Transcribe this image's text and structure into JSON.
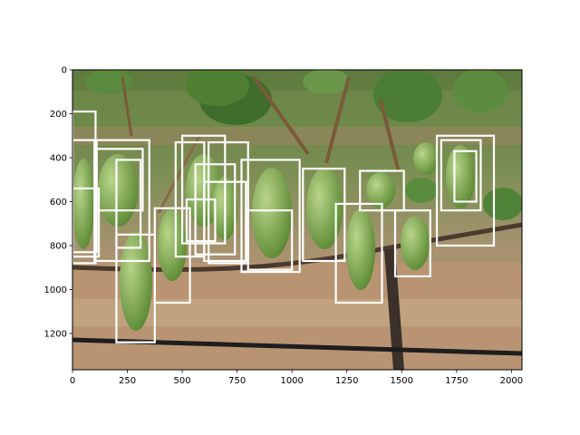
{
  "chart_data": {
    "type": "image-with-bounding-boxes",
    "title": "",
    "xlabel": "",
    "ylabel": "",
    "xlim": [
      0,
      2048
    ],
    "ylim": [
      1365,
      0
    ],
    "x_ticks": [
      0,
      250,
      500,
      750,
      1000,
      1250,
      1500,
      1750,
      2000
    ],
    "y_ticks": [
      0,
      200,
      400,
      600,
      800,
      1000,
      1200
    ],
    "grid": false,
    "legend": "none",
    "image_subject": "grapevine with green grape clusters",
    "box_color": "#ffffff",
    "boxes": [
      {
        "x0": 0,
        "y0": 190,
        "x1": 105,
        "y1": 880
      },
      {
        "x0": 0,
        "y0": 320,
        "x1": 110,
        "y1": 830
      },
      {
        "x0": 0,
        "y0": 540,
        "x1": 120,
        "y1": 850
      },
      {
        "x0": 100,
        "y0": 320,
        "x1": 350,
        "y1": 870
      },
      {
        "x0": 110,
        "y0": 360,
        "x1": 320,
        "y1": 640
      },
      {
        "x0": 200,
        "y0": 410,
        "x1": 310,
        "y1": 810
      },
      {
        "x0": 200,
        "y0": 750,
        "x1": 375,
        "y1": 1240
      },
      {
        "x0": 375,
        "y0": 630,
        "x1": 535,
        "y1": 1060
      },
      {
        "x0": 470,
        "y0": 330,
        "x1": 600,
        "y1": 850
      },
      {
        "x0": 500,
        "y0": 300,
        "x1": 695,
        "y1": 790
      },
      {
        "x0": 520,
        "y0": 590,
        "x1": 650,
        "y1": 780
      },
      {
        "x0": 560,
        "y0": 430,
        "x1": 740,
        "y1": 840
      },
      {
        "x0": 620,
        "y0": 330,
        "x1": 800,
        "y1": 880
      },
      {
        "x0": 600,
        "y0": 510,
        "x1": 790,
        "y1": 870
      },
      {
        "x0": 770,
        "y0": 410,
        "x1": 1035,
        "y1": 920
      },
      {
        "x0": 800,
        "y0": 640,
        "x1": 1000,
        "y1": 910
      },
      {
        "x0": 1050,
        "y0": 450,
        "x1": 1240,
        "y1": 870
      },
      {
        "x0": 1200,
        "y0": 610,
        "x1": 1410,
        "y1": 1060
      },
      {
        "x0": 1310,
        "y0": 460,
        "x1": 1510,
        "y1": 640
      },
      {
        "x0": 1470,
        "y0": 640,
        "x1": 1630,
        "y1": 940
      },
      {
        "x0": 1660,
        "y0": 300,
        "x1": 1920,
        "y1": 800
      },
      {
        "x0": 1680,
        "y0": 320,
        "x1": 1860,
        "y1": 640
      },
      {
        "x0": 1740,
        "y0": 370,
        "x1": 1840,
        "y1": 600
      }
    ]
  }
}
